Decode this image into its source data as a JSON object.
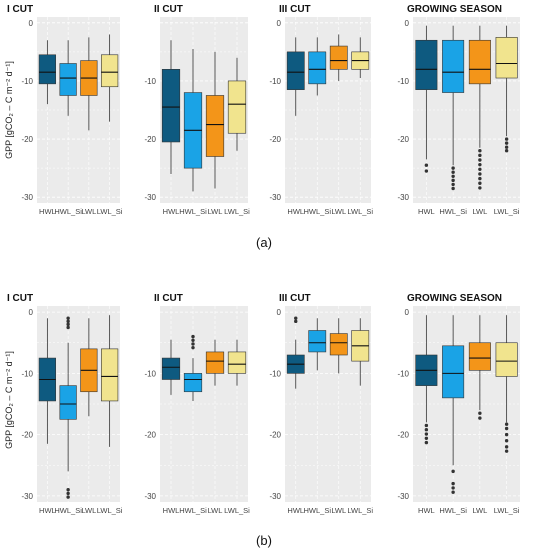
{
  "figure": {
    "ylabel": "GPP [gCO₂ – C m⁻² d⁻¹]",
    "caption_a": "(a)",
    "caption_b": "(b)"
  },
  "colors": {
    "HWL": "#0e5a80",
    "HWL_Si": "#1aa3e6",
    "LWL": "#f39519",
    "LWL_Si": "#f1e48e",
    "panel_bg": "#ebebeb",
    "grid": "#ffffff",
    "outlier": "#333333"
  },
  "chart_data": [
    {
      "type": "boxplot",
      "row": "a",
      "title": "I CUT",
      "categories": [
        "HWL",
        "HWL_Si",
        "LWL",
        "LWL_Si"
      ],
      "ylim": [
        -31,
        1
      ],
      "yticks": [
        0,
        -10,
        -20,
        -30
      ],
      "boxes": [
        {
          "min": -14,
          "q1": -10.5,
          "median": -8.5,
          "q3": -5.5,
          "max": -3,
          "outliers": []
        },
        {
          "min": -16,
          "q1": -12.5,
          "median": -9.5,
          "q3": -7,
          "max": -3,
          "outliers": []
        },
        {
          "min": -18.5,
          "q1": -12.5,
          "median": -9.5,
          "q3": -6.5,
          "max": -2.5,
          "outliers": []
        },
        {
          "min": -17,
          "q1": -11,
          "median": -8.5,
          "q3": -5.5,
          "max": -2,
          "outliers": []
        }
      ]
    },
    {
      "type": "boxplot",
      "row": "a",
      "title": "II CUT",
      "categories": [
        "HWL",
        "HWL_Si",
        "LWL",
        "LWL_Si"
      ],
      "ylim": [
        -31,
        1
      ],
      "yticks": [
        -10,
        -20,
        -30
      ],
      "boxes": [
        {
          "min": -26,
          "q1": -20.5,
          "median": -14.5,
          "q3": -8,
          "max": -3,
          "outliers": []
        },
        {
          "min": -29,
          "q1": -25,
          "median": -18.5,
          "q3": -12,
          "max": -4.5,
          "outliers": []
        },
        {
          "min": -28.5,
          "q1": -23,
          "median": -17.5,
          "q3": -12.5,
          "max": -5,
          "outliers": []
        },
        {
          "min": -22,
          "q1": -19,
          "median": -14,
          "q3": -10,
          "max": -6,
          "outliers": []
        }
      ]
    },
    {
      "type": "boxplot",
      "row": "a",
      "title": "III CUT",
      "categories": [
        "HWL",
        "HWL_Si",
        "LWL",
        "LWL_Si"
      ],
      "ylim": [
        -31,
        1
      ],
      "yticks": [
        0,
        -10,
        -20,
        -30
      ],
      "boxes": [
        {
          "min": -16,
          "q1": -11.5,
          "median": -8.5,
          "q3": -5,
          "max": -2.5,
          "outliers": []
        },
        {
          "min": -12.5,
          "q1": -10.5,
          "median": -8,
          "q3": -5,
          "max": -2.5,
          "outliers": []
        },
        {
          "min": -10,
          "q1": -8,
          "median": -6.5,
          "q3": -4,
          "max": -2,
          "outliers": []
        },
        {
          "min": -9.5,
          "q1": -8,
          "median": -6.5,
          "q3": -5,
          "max": -2.5,
          "outliers": []
        }
      ]
    },
    {
      "type": "boxplot",
      "row": "a",
      "title": "GROWING SEASON",
      "categories": [
        "HWL",
        "HWL_Si",
        "LWL",
        "LWL_Si"
      ],
      "ylim": [
        -31,
        1
      ],
      "yticks": [
        0,
        -10,
        -20,
        -30
      ],
      "boxes": [
        {
          "min": -23.5,
          "q1": -11.5,
          "median": -8,
          "q3": -3,
          "max": -0.5,
          "outliers": [
            -24.5,
            -25.5
          ]
        },
        {
          "min": -24.5,
          "q1": -12,
          "median": -8.5,
          "q3": -3,
          "max": -0.5,
          "outliers": [
            -25,
            -25.7,
            -26.4,
            -27.1,
            -27.8,
            -28.5
          ]
        },
        {
          "min": -21.5,
          "q1": -10.5,
          "median": -8,
          "q3": -3,
          "max": -0.5,
          "outliers": [
            -22,
            -22.8,
            -23.6,
            -24.4,
            -25.2,
            -26,
            -26.8,
            -27.6,
            -28.4
          ]
        },
        {
          "min": -19.5,
          "q1": -9.5,
          "median": -7,
          "q3": -2.5,
          "max": -0.5,
          "outliers": [
            -20,
            -20.7,
            -21.4,
            -22
          ]
        }
      ]
    },
    {
      "type": "boxplot",
      "row": "b",
      "title": "I CUT",
      "categories": [
        "HWL",
        "HWL_Si",
        "LWL",
        "LWL_Si"
      ],
      "ylim": [
        -31,
        1
      ],
      "yticks": [
        0,
        -10,
        -20,
        -30
      ],
      "boxes": [
        {
          "min": -21.5,
          "q1": -14.5,
          "median": -11,
          "q3": -7.5,
          "max": -1,
          "outliers": []
        },
        {
          "min": -26,
          "q1": -17.5,
          "median": -15,
          "q3": -12,
          "max": -5,
          "outliers": [
            -1,
            -1.5,
            -2,
            -2.5,
            -29,
            -29.6,
            -30.2
          ]
        },
        {
          "min": -17,
          "q1": -13,
          "median": -9.5,
          "q3": -6,
          "max": -1,
          "outliers": []
        },
        {
          "min": -22,
          "q1": -14.5,
          "median": -10.5,
          "q3": -6,
          "max": -0.5,
          "outliers": []
        }
      ]
    },
    {
      "type": "boxplot",
      "row": "b",
      "title": "II CUT",
      "categories": [
        "HWL",
        "HWL_Si",
        "LWL",
        "LWL_Si"
      ],
      "ylim": [
        -31,
        1
      ],
      "yticks": [
        -10,
        -20,
        -30
      ],
      "boxes": [
        {
          "min": -13.5,
          "q1": -11,
          "median": -9,
          "q3": -7.5,
          "max": -4.5,
          "outliers": []
        },
        {
          "min": -14.5,
          "q1": -13,
          "median": -11,
          "q3": -10,
          "max": -7.5,
          "outliers": [
            -4,
            -4.6,
            -5.2,
            -5.8
          ]
        },
        {
          "min": -12,
          "q1": -10,
          "median": -8,
          "q3": -6.5,
          "max": -4.5,
          "outliers": []
        },
        {
          "min": -12,
          "q1": -10,
          "median": -8.5,
          "q3": -6.5,
          "max": -4.5,
          "outliers": []
        }
      ]
    },
    {
      "type": "boxplot",
      "row": "b",
      "title": "III CUT",
      "categories": [
        "HWL",
        "HWL_Si",
        "LWL",
        "LWL_Si"
      ],
      "ylim": [
        -31,
        1
      ],
      "yticks": [
        0,
        -10,
        -20,
        -30
      ],
      "boxes": [
        {
          "min": -12.5,
          "q1": -10,
          "median": -8.5,
          "q3": -7,
          "max": -4.5,
          "outliers": [
            -1,
            -1.5
          ]
        },
        {
          "min": -9.5,
          "q1": -6.5,
          "median": -5,
          "q3": -3,
          "max": -1,
          "outliers": []
        },
        {
          "min": -10,
          "q1": -7,
          "median": -5,
          "q3": -3.5,
          "max": -1,
          "outliers": []
        },
        {
          "min": -12,
          "q1": -8,
          "median": -5.5,
          "q3": -3,
          "max": -1,
          "outliers": []
        }
      ]
    },
    {
      "type": "boxplot",
      "row": "b",
      "title": "GROWING SEASON",
      "categories": [
        "HWL",
        "HWL_Si",
        "LWL",
        "LWL_Si"
      ],
      "ylim": [
        -31,
        1
      ],
      "yticks": [
        0,
        -10,
        -20,
        -30
      ],
      "boxes": [
        {
          "min": -18,
          "q1": -12,
          "median": -9.5,
          "q3": -7,
          "max": -0.5,
          "outliers": [
            -18.5,
            -19.2,
            -19.9,
            -20.6,
            -21.3
          ]
        },
        {
          "min": -25,
          "q1": -14,
          "median": -10,
          "q3": -5.5,
          "max": -0.5,
          "outliers": [
            -26,
            -28,
            -28.7,
            -29.4
          ]
        },
        {
          "min": -16,
          "q1": -9.5,
          "median": -7.5,
          "q3": -5,
          "max": -0.5,
          "outliers": [
            -16.5,
            -17.3
          ]
        },
        {
          "min": -18,
          "q1": -10.5,
          "median": -8,
          "q3": -5,
          "max": -0.5,
          "outliers": [
            -18.3,
            -19,
            -20,
            -21,
            -22,
            -22.7
          ]
        }
      ]
    }
  ]
}
